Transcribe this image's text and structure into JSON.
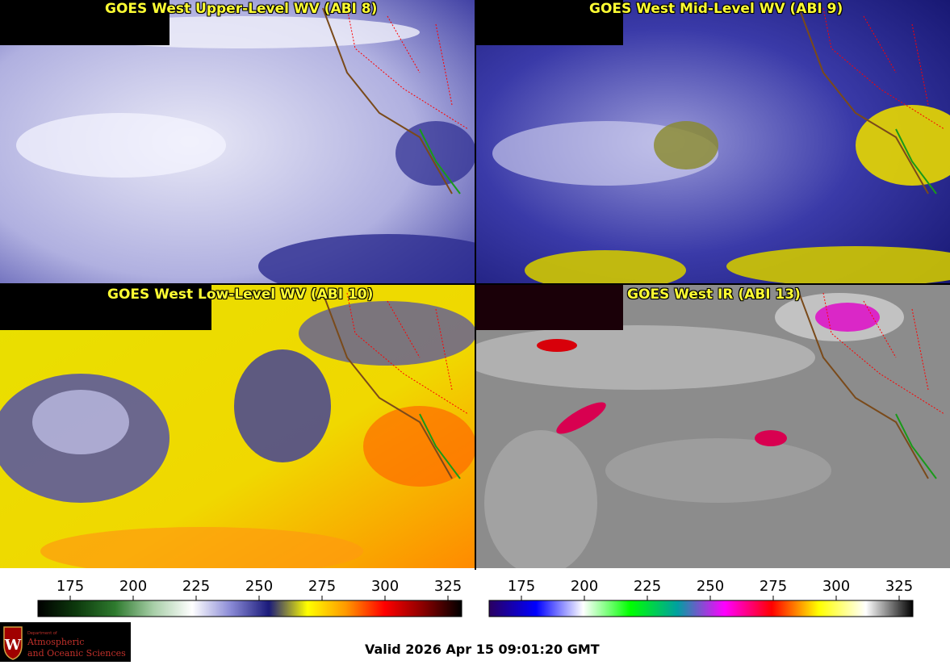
{
  "panels": [
    {
      "title": "GOES West Upper-Level WV (ABI 8)"
    },
    {
      "title": "GOES West Mid-Level WV (ABI 9)"
    },
    {
      "title": "GOES West Low-Level WV (ABI 10)"
    },
    {
      "title": "GOES West IR (ABI 13)"
    }
  ],
  "colorbars": {
    "wv": {
      "ticks": [
        "175",
        "200",
        "225",
        "250",
        "275",
        "300",
        "325"
      ],
      "stops": [
        "#000000",
        "#0d3a0d",
        "#2e7a2e",
        "#a8cfa8",
        "#ffffff",
        "#8a8ad6",
        "#1a1a7a",
        "#ffff00",
        "#ff9900",
        "#ff0000",
        "#8a0000",
        "#000000"
      ]
    },
    "ir": {
      "ticks": [
        "175",
        "200",
        "225",
        "250",
        "275",
        "300",
        "325"
      ],
      "stops": [
        "#2a0060",
        "#0000ff",
        "#ffffff",
        "#00ff00",
        "#00a0a0",
        "#ff00ff",
        "#ff0000",
        "#ffff00",
        "#ffffff",
        "#000000"
      ]
    }
  },
  "logo": {
    "line1": "Department of",
    "line2": "Atmospheric",
    "line3": "and Oceanic Sciences"
  },
  "valid_time": "Valid 2026 Apr 15 09:01:20 GMT"
}
